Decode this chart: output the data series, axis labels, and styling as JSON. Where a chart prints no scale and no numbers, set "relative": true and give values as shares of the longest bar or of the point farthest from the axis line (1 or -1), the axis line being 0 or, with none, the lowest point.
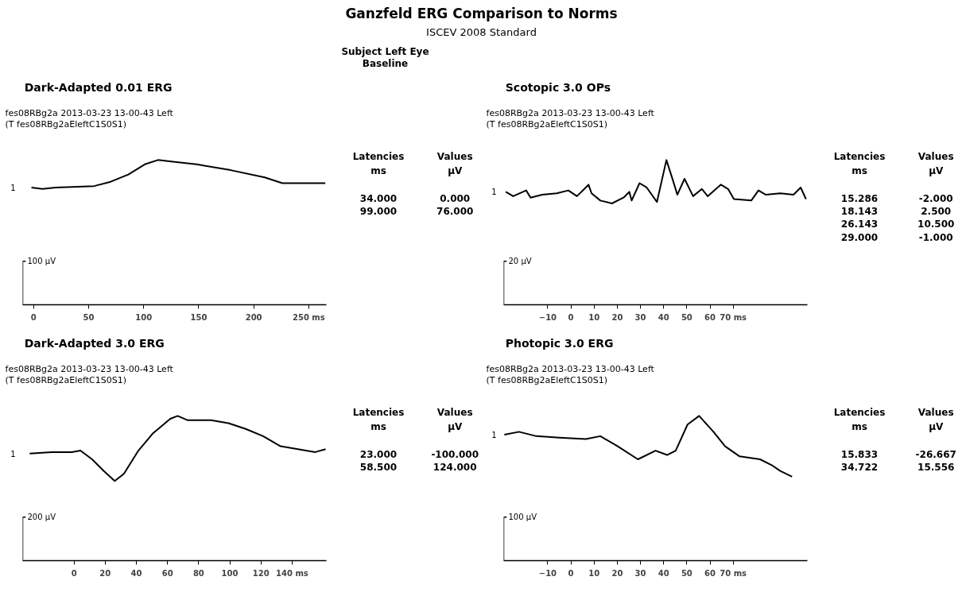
{
  "chart_data": [
    {
      "type": "other",
      "title": "Ganzfeld ERG Comparison to Norms",
      "subtitle": "ISCEV 2008 Standard",
      "annotations": [
        "Subject Left Eye\nBaseline"
      ]
    },
    {
      "type": "line",
      "title": "Dark-Adapted 0.01 ERG",
      "subtitle": "fes08RBg2a 2013-03-23 13-00-43 Left\n(T fes08RBg2aEleftC1S0S1)",
      "relative": true,
      "grid": false,
      "xlim": [
        -10,
        266
      ],
      "xticks": [
        0,
        50,
        100,
        150,
        200,
        {
          "value": 250,
          "label": "250 ms"
        }
      ],
      "x": [
        -2,
        8,
        20,
        55,
        70,
        86,
        101,
        113,
        125,
        148,
        179,
        210,
        226,
        241,
        265
      ],
      "series": [
        {
          "name": "1",
          "color": "#000000",
          "values": [
            0.81,
            0.8,
            0.81,
            0.82,
            0.85,
            0.9,
            0.97,
            1.0,
            0.99,
            0.97,
            0.93,
            0.88,
            0.84,
            0.84,
            0.84
          ]
        }
      ],
      "annotations": [
        "100 µV",
        "Latencies\nms",
        "Values\nµV",
        "34.000",
        "0.000",
        "99.000",
        "76.000"
      ]
    },
    {
      "type": "line",
      "title": "Scotopic 3.0 OPs",
      "subtitle": "fes08RBg2a 2013-03-23 13-00-43 Left\n(T fes08RBg2aEleftC1S0S1)",
      "relative": true,
      "grid": false,
      "xlim": [
        -29,
        102
      ],
      "xticks": [
        -10,
        0,
        10,
        20,
        30,
        40,
        50,
        60,
        {
          "value": 70,
          "label": "70 ms"
        }
      ],
      "x": [
        -28.1,
        -24.9,
        -19.3,
        -17.4,
        -12.4,
        -6.1,
        -1.1,
        2.6,
        5.8,
        7.6,
        8.9,
        12.7,
        17.7,
        22.7,
        25.2,
        26.2,
        29.6,
        32.7,
        37.1,
        41.2,
        44.0,
        45.9,
        49.0,
        52.7,
        56.5,
        59.0,
        64.7,
        67.8,
        70.3,
        77.8,
        80.9,
        84.1,
        90.3,
        96.0,
        99.1,
        101.4
      ],
      "series": [
        {
          "name": "1",
          "color": "#000000",
          "values": [
            0.78,
            0.75,
            0.79,
            0.74,
            0.76,
            0.77,
            0.79,
            0.75,
            0.8,
            0.83,
            0.77,
            0.72,
            0.7,
            0.74,
            0.78,
            0.72,
            0.84,
            0.81,
            0.71,
            1.0,
            0.86,
            0.76,
            0.87,
            0.75,
            0.8,
            0.75,
            0.83,
            0.8,
            0.73,
            0.72,
            0.79,
            0.76,
            0.77,
            0.76,
            0.81,
            0.73
          ]
        }
      ],
      "annotations": [
        "20 µV",
        "Latencies\nms",
        "Values\nµV",
        "15.286",
        "-2.000",
        "18.143",
        "2.500",
        "26.143",
        "10.500",
        "29.000",
        "-1.000"
      ]
    },
    {
      "type": "line",
      "title": "Dark-Adapted 3.0 ERG",
      "subtitle": "fes08RBg2a 2013-03-23 13-00-43 Left\n(T fes08RBg2aEleftC1S0S1)",
      "relative": true,
      "grid": false,
      "xlim": [
        -33,
        162
      ],
      "xticks": [
        0,
        20,
        40,
        60,
        80,
        100,
        120,
        {
          "value": 140,
          "label": "140 ms"
        }
      ],
      "x": [
        -28.5,
        -14.5,
        -1.5,
        4.1,
        11.6,
        19.0,
        26.1,
        32.0,
        41.3,
        50.7,
        61.8,
        66.5,
        73.0,
        87.9,
        99.1,
        110.2,
        121.4,
        132.6,
        143.8,
        154.9,
        161.5
      ],
      "series": [
        {
          "name": "1",
          "color": "#000000",
          "values": [
            0.74,
            0.75,
            0.75,
            0.76,
            0.7,
            0.62,
            0.55,
            0.6,
            0.76,
            0.88,
            0.98,
            1.0,
            0.97,
            0.97,
            0.95,
            0.91,
            0.86,
            0.79,
            0.77,
            0.75,
            0.77
          ]
        }
      ],
      "annotations": [
        "200 µV",
        "Latencies\nms",
        "Values\nµV",
        "23.000",
        "-100.000",
        "58.500",
        "124.000"
      ]
    },
    {
      "type": "line",
      "title": "Photopic 3.0 ERG",
      "subtitle": "fes08RBg2a 2013-03-23 13-00-43 Left\n(T fes08RBg2aEleftC1S0S1)",
      "relative": true,
      "grid": false,
      "xlim": [
        -29,
        102
      ],
      "xticks": [
        -10,
        0,
        10,
        20,
        30,
        40,
        50,
        60,
        {
          "value": 70,
          "label": "70 ms"
        }
      ],
      "x": [
        -28.7,
        -22.4,
        -14.9,
        -4.9,
        6.4,
        12.7,
        20.2,
        28.9,
        36.5,
        41.5,
        45.2,
        50.3,
        55.3,
        61.5,
        66.5,
        72.8,
        81.6,
        86.6,
        90.3,
        95.4
      ],
      "series": [
        {
          "name": "1",
          "color": "#000000",
          "values": [
            0.87,
            0.89,
            0.86,
            0.85,
            0.84,
            0.86,
            0.79,
            0.7,
            0.76,
            0.73,
            0.76,
            0.94,
            1.0,
            0.89,
            0.79,
            0.72,
            0.7,
            0.66,
            0.62,
            0.58
          ]
        }
      ],
      "annotations": [
        "100 µV",
        "Latencies\nms",
        "Values\nµV",
        "15.833",
        "-26.667",
        "34.722",
        "15.556"
      ]
    }
  ]
}
